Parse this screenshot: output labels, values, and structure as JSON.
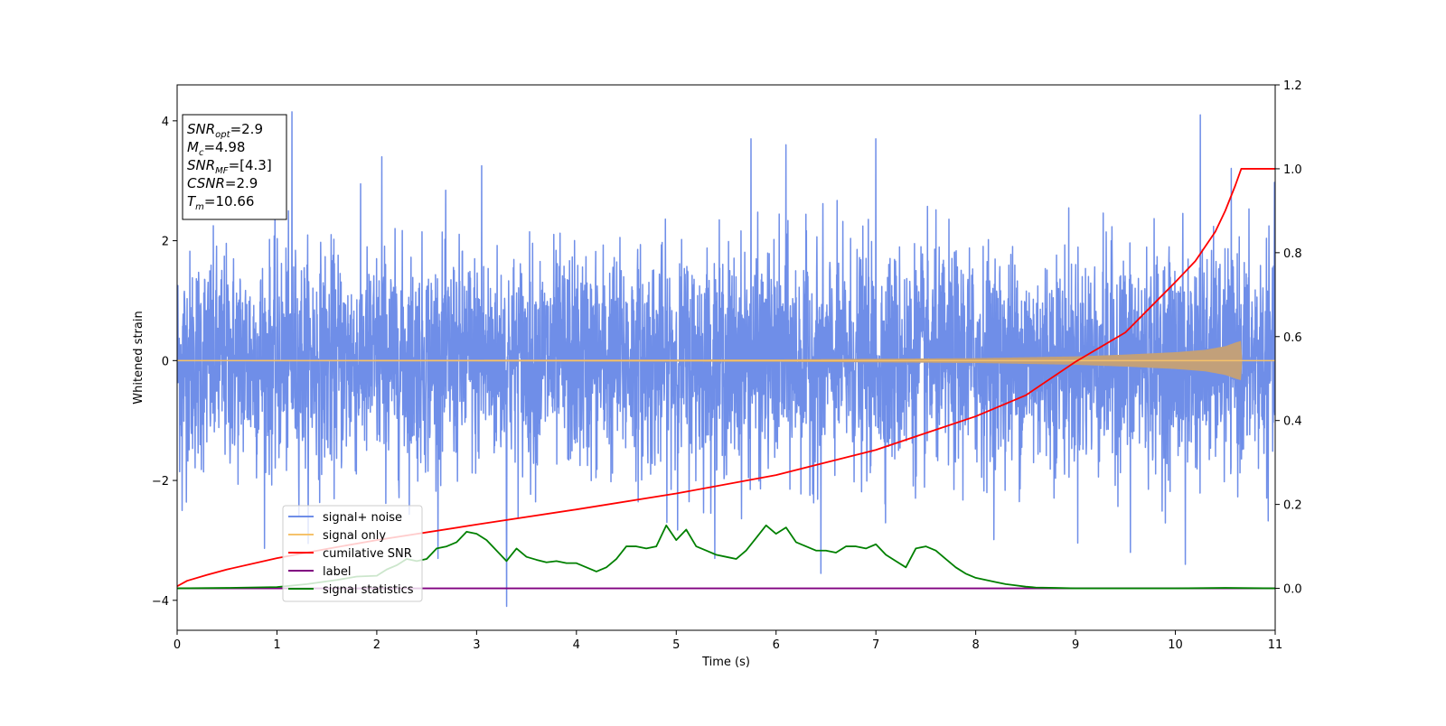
{
  "chart_data": {
    "type": "line",
    "xlabel": "Time (s)",
    "ylabel_left": "Whitened strain",
    "ylabel_right": "",
    "xlim": [
      0,
      11
    ],
    "ylim_left": [
      -4.5,
      4.6
    ],
    "ylim_right": [
      -0.1,
      1.2
    ],
    "x_ticks": [
      0,
      1,
      2,
      3,
      4,
      5,
      6,
      7,
      8,
      9,
      10,
      11
    ],
    "x_tick_labels": [
      "0",
      "1",
      "2",
      "3",
      "4",
      "5",
      "6",
      "7",
      "8",
      "9",
      "10",
      "11"
    ],
    "y_left_ticks": [
      -4,
      -2,
      0,
      2,
      4
    ],
    "y_left_tick_labels": [
      "−4",
      "−2",
      "0",
      "2",
      "4"
    ],
    "y_right_ticks": [
      0.0,
      0.2,
      0.4,
      0.6,
      0.8,
      1.0,
      1.2
    ],
    "y_right_tick_labels": [
      "0.0",
      "0.2",
      "0.4",
      "0.6",
      "0.8",
      "1.0",
      "1.2"
    ],
    "legend_position": "lower-left",
    "info_box": {
      "lines": [
        {
          "base": "SNR",
          "sub": "opt",
          "rest": "=2.9"
        },
        {
          "base": "M",
          "sub": "c",
          "rest": "=4.98"
        },
        {
          "base": "SNR",
          "sub": "MF",
          "rest": "=[4.3]"
        },
        {
          "base": "CSNR",
          "sub": "",
          "rest": "=2.9"
        },
        {
          "base": "T",
          "sub": "m",
          "rest": "=10.66"
        }
      ]
    },
    "series": [
      {
        "name": "signal+ noise",
        "axis": "left",
        "color": "#6f8ee8",
        "description_type": "noise",
        "amplitude_sigma": 0.9,
        "peaks": [
          {
            "x": 1.15,
            "y": 4.15
          },
          {
            "x": 2.05,
            "y": 3.4
          },
          {
            "x": 3.05,
            "y": 3.25
          },
          {
            "x": 5.75,
            "y": 3.7
          },
          {
            "x": 6.1,
            "y": 3.6
          },
          {
            "x": 7.0,
            "y": 3.7
          },
          {
            "x": 10.25,
            "y": 4.1
          },
          {
            "x": 3.3,
            "y": -4.1
          },
          {
            "x": 10.1,
            "y": -3.4
          },
          {
            "x": 0.05,
            "y": -2.5
          },
          {
            "x": 6.45,
            "y": -3.55
          },
          {
            "x": 9.55,
            "y": -3.2
          }
        ]
      },
      {
        "name": "signal only",
        "axis": "left",
        "color": "#f5c26b",
        "fill_color": "#c2a07a",
        "description_type": "chirp",
        "t_merge": 10.66,
        "envelope": {
          "x": [
            0,
            6,
            8,
            9,
            9.5,
            10,
            10.3,
            10.5,
            10.6,
            10.66,
            10.67,
            11
          ],
          "y": [
            0.01,
            0.02,
            0.04,
            0.07,
            0.1,
            0.14,
            0.18,
            0.24,
            0.3,
            0.33,
            0.0,
            0.0
          ]
        }
      },
      {
        "name": "cumilative SNR",
        "axis": "right",
        "color": "#ff0000",
        "x": [
          0,
          0.1,
          0.3,
          0.5,
          1,
          1.5,
          2,
          3,
          4,
          5,
          6,
          7,
          7.5,
          8,
          8.5,
          9,
          9.5,
          10,
          10.2,
          10.4,
          10.5,
          10.6,
          10.66,
          11
        ],
        "y": [
          0.005,
          0.018,
          0.032,
          0.045,
          0.072,
          0.094,
          0.115,
          0.152,
          0.188,
          0.226,
          0.27,
          0.33,
          0.37,
          0.41,
          0.46,
          0.54,
          0.61,
          0.73,
          0.78,
          0.85,
          0.9,
          0.96,
          1.0,
          1.0
        ]
      },
      {
        "name": "label",
        "axis": "right",
        "color": "#800080",
        "x": [
          0,
          11
        ],
        "y": [
          0.0,
          0.0
        ]
      },
      {
        "name": "signal statistics",
        "axis": "right",
        "color": "#008000",
        "x": [
          0,
          0.5,
          1,
          1.3,
          1.6,
          1.8,
          2.0,
          2.1,
          2.2,
          2.3,
          2.4,
          2.5,
          2.6,
          2.7,
          2.8,
          2.9,
          3.0,
          3.1,
          3.2,
          3.3,
          3.35,
          3.4,
          3.5,
          3.6,
          3.7,
          3.8,
          3.9,
          4.0,
          4.1,
          4.2,
          4.3,
          4.4,
          4.5,
          4.6,
          4.7,
          4.8,
          4.9,
          5.0,
          5.1,
          5.2,
          5.3,
          5.4,
          5.5,
          5.6,
          5.7,
          5.8,
          5.9,
          6.0,
          6.1,
          6.2,
          6.3,
          6.4,
          6.5,
          6.6,
          6.7,
          6.8,
          6.9,
          7.0,
          7.1,
          7.2,
          7.3,
          7.4,
          7.5,
          7.6,
          7.7,
          7.8,
          7.9,
          8.0,
          8.1,
          8.2,
          8.3,
          8.4,
          8.5,
          8.6,
          8.8,
          9.0,
          9.5,
          10,
          10.5,
          11
        ],
        "y": [
          0.0,
          0.001,
          0.003,
          0.01,
          0.02,
          0.028,
          0.03,
          0.045,
          0.055,
          0.07,
          0.065,
          0.07,
          0.095,
          0.1,
          0.11,
          0.135,
          0.13,
          0.115,
          0.09,
          0.065,
          0.08,
          0.095,
          0.075,
          0.068,
          0.062,
          0.065,
          0.06,
          0.06,
          0.05,
          0.04,
          0.05,
          0.07,
          0.1,
          0.1,
          0.095,
          0.1,
          0.15,
          0.115,
          0.14,
          0.1,
          0.09,
          0.08,
          0.075,
          0.07,
          0.09,
          0.12,
          0.15,
          0.13,
          0.145,
          0.11,
          0.1,
          0.09,
          0.09,
          0.085,
          0.1,
          0.1,
          0.095,
          0.105,
          0.08,
          0.065,
          0.05,
          0.095,
          0.1,
          0.09,
          0.07,
          0.05,
          0.035,
          0.025,
          0.02,
          0.015,
          0.01,
          0.007,
          0.004,
          0.002,
          0.001,
          0.0,
          0.0,
          0.0,
          0.001,
          0.0
        ]
      }
    ]
  }
}
